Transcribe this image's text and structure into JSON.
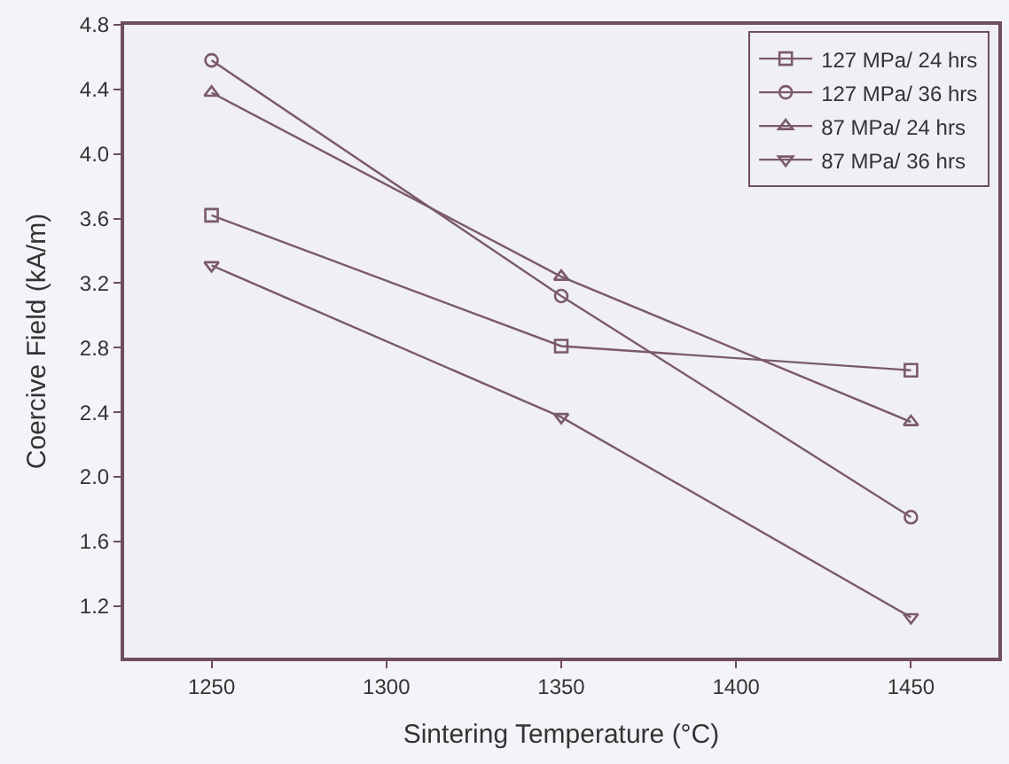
{
  "chart_data": {
    "type": "line",
    "xlabel": "Sintering Temperature (°C)",
    "ylabel": "Coercive Field (kA/m)",
    "x": [
      1250,
      1350,
      1450
    ],
    "series": [
      {
        "name": "127 MPa/ 24 hrs",
        "color": "#7a5a6a",
        "marker": "square",
        "values": [
          3.62,
          2.81,
          2.66
        ]
      },
      {
        "name": "127 MPa/ 36 hrs",
        "color": "#7a5a6a",
        "marker": "circle",
        "values": [
          4.58,
          3.12,
          1.75
        ]
      },
      {
        "name": "87 MPa/ 24 hrs",
        "color": "#7a5a6a",
        "marker": "triangle",
        "values": [
          4.38,
          3.24,
          2.34
        ]
      },
      {
        "name": "87 MPa/ 36 hrs",
        "color": "#7a5a6a",
        "marker": "triangle-down",
        "values": [
          3.31,
          2.37,
          1.13
        ]
      }
    ],
    "xlim": [
      1225,
      1475
    ],
    "xticks": [
      1250,
      1300,
      1350,
      1400,
      1450
    ],
    "ylim": [
      0.88,
      4.8
    ],
    "yticks": [
      1.2,
      1.6,
      {
        "value": 2,
        "label": "2.0"
      },
      2.4,
      2.8,
      3.2,
      3.6,
      {
        "value": 4,
        "label": "4.0"
      },
      4.4,
      4.8
    ],
    "grid": false,
    "legend": "top right",
    "line_style": "solid"
  }
}
